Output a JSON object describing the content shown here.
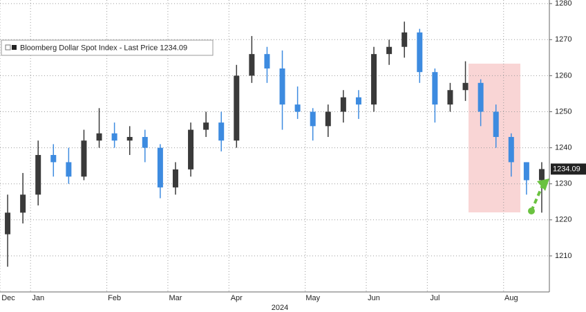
{
  "chart_data": {
    "type": "candlestick",
    "categories": [
      "Dec",
      null,
      "Jan",
      null,
      null,
      null,
      null,
      "Feb",
      null,
      null,
      null,
      "Mar",
      null,
      null,
      null,
      "Apr",
      null,
      null,
      null,
      null,
      "May",
      null,
      null,
      null,
      "Jun",
      null,
      null,
      null,
      "Jul",
      null,
      null,
      null,
      null,
      "Aug",
      null,
      null
    ],
    "xlabel": "2024",
    "series": [
      {
        "name": "Bloomberg Dollar Spot Index - Last Price 1234.09",
        "color_up": "#3a3a3a",
        "color_down": "#3d8be0",
        "open": [
          1216,
          1222,
          1227,
          1238,
          1236,
          1232,
          1242,
          1244,
          1242,
          1243,
          1240,
          1229,
          1234,
          1245,
          1247,
          1242,
          1260,
          1266,
          1262,
          1252,
          1250,
          1246,
          1250,
          1254,
          1252,
          1266,
          1268,
          1272,
          1261,
          1252,
          1256,
          1258,
          1250,
          1243,
          1236,
          1231
        ],
        "high": [
          1227,
          1233,
          1242,
          1241,
          1240,
          1245,
          1251,
          1247,
          1246,
          1245,
          1241,
          1236,
          1247,
          1250,
          1250,
          1263,
          1271,
          1268,
          1267,
          1257,
          1251,
          1252,
          1256,
          1256,
          1268,
          1270,
          1275,
          1273,
          1262,
          1258,
          1264,
          1259,
          1252,
          1244,
          1236,
          1236
        ],
        "low": [
          1207,
          1219,
          1224,
          1232,
          1230,
          1231,
          1240,
          1240,
          1238,
          1236,
          1226,
          1227,
          1232,
          1243,
          1239,
          1240,
          1258,
          1258,
          1245,
          1248,
          1242,
          1243,
          1247,
          1248,
          1250,
          1263,
          1265,
          1258,
          1247,
          1250,
          1253,
          1246,
          1240,
          1232,
          1227,
          1222
        ],
        "close": [
          1222,
          1227,
          1238,
          1236,
          1232,
          1242,
          1244,
          1242,
          1243,
          1240,
          1229,
          1234,
          1245,
          1247,
          1242,
          1260,
          1266,
          1262,
          1252,
          1250,
          1246,
          1250,
          1254,
          1252,
          1266,
          1268,
          1272,
          1261,
          1252,
          1256,
          1258,
          1250,
          1243,
          1236,
          1231,
          1234.09
        ]
      }
    ],
    "last_price": {
      "value": 1234.09,
      "label": "1234.09"
    },
    "ylim": [
      1200,
      1281
    ],
    "yticks": [
      1210,
      1220,
      1230,
      1240,
      1250,
      1260,
      1270,
      1280
    ],
    "grid": true
  }
}
